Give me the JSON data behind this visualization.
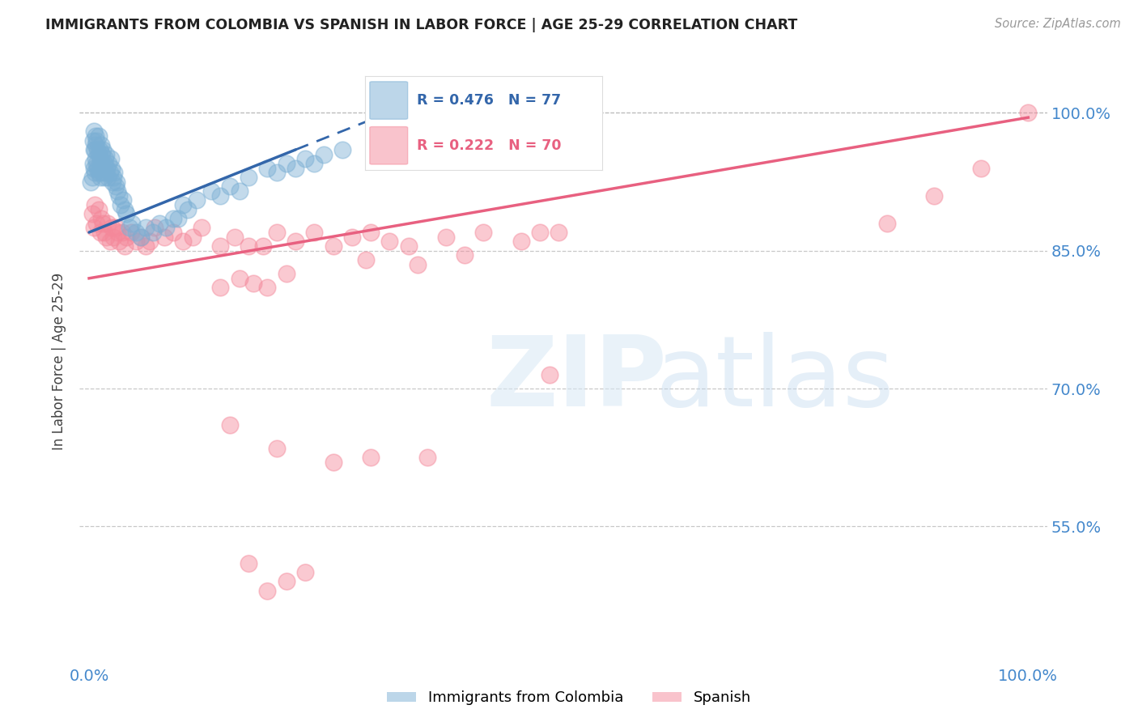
{
  "title": "IMMIGRANTS FROM COLOMBIA VS SPANISH IN LABOR FORCE | AGE 25-29 CORRELATION CHART",
  "source": "Source: ZipAtlas.com",
  "ylabel": "In Labor Force | Age 25-29",
  "xlim": [
    -0.01,
    1.02
  ],
  "ylim": [
    0.4,
    1.06
  ],
  "yticks": [
    0.55,
    0.7,
    0.85,
    1.0
  ],
  "ytick_labels": [
    "55.0%",
    "70.0%",
    "85.0%",
    "100.0%"
  ],
  "xtick_left_label": "0.0%",
  "xtick_right_label": "100.0%",
  "blue_R": 0.476,
  "blue_N": 77,
  "pink_R": 0.222,
  "pink_N": 70,
  "blue_color": "#7BAFD4",
  "pink_color": "#F4889A",
  "blue_line_color": "#3366AA",
  "pink_line_color": "#E86080",
  "background_color": "#FFFFFF",
  "grid_color": "#BBBBBB",
  "title_color": "#222222",
  "tick_color": "#4488CC",
  "legend_label_blue": "Immigrants from Colombia",
  "legend_label_pink": "Spanish",
  "blue_points_x": [
    0.002,
    0.003,
    0.004,
    0.004,
    0.005,
    0.005,
    0.005,
    0.006,
    0.006,
    0.007,
    0.007,
    0.007,
    0.008,
    0.008,
    0.009,
    0.009,
    0.01,
    0.01,
    0.01,
    0.011,
    0.011,
    0.012,
    0.012,
    0.013,
    0.013,
    0.014,
    0.014,
    0.015,
    0.015,
    0.016,
    0.016,
    0.017,
    0.018,
    0.018,
    0.019,
    0.02,
    0.021,
    0.022,
    0.023,
    0.024,
    0.025,
    0.026,
    0.027,
    0.028,
    0.029,
    0.03,
    0.032,
    0.034,
    0.036,
    0.038,
    0.04,
    0.043,
    0.046,
    0.05,
    0.055,
    0.06,
    0.068,
    0.075,
    0.082,
    0.09,
    0.1,
    0.115,
    0.13,
    0.15,
    0.17,
    0.19,
    0.21,
    0.23,
    0.25,
    0.27,
    0.095,
    0.105,
    0.14,
    0.16,
    0.2,
    0.22,
    0.24
  ],
  "blue_points_y": [
    0.925,
    0.93,
    0.945,
    0.97,
    0.94,
    0.96,
    0.98,
    0.935,
    0.96,
    0.95,
    0.965,
    0.975,
    0.945,
    0.97,
    0.94,
    0.96,
    0.935,
    0.955,
    0.975,
    0.94,
    0.96,
    0.93,
    0.95,
    0.945,
    0.965,
    0.935,
    0.955,
    0.94,
    0.96,
    0.93,
    0.945,
    0.95,
    0.935,
    0.955,
    0.94,
    0.93,
    0.945,
    0.935,
    0.95,
    0.94,
    0.925,
    0.93,
    0.935,
    0.92,
    0.925,
    0.915,
    0.91,
    0.9,
    0.905,
    0.895,
    0.89,
    0.875,
    0.88,
    0.87,
    0.865,
    0.875,
    0.87,
    0.88,
    0.875,
    0.885,
    0.9,
    0.905,
    0.915,
    0.92,
    0.93,
    0.94,
    0.945,
    0.95,
    0.955,
    0.96,
    0.885,
    0.895,
    0.91,
    0.915,
    0.935,
    0.94,
    0.945
  ],
  "pink_points_x": [
    0.003,
    0.005,
    0.006,
    0.008,
    0.01,
    0.012,
    0.013,
    0.015,
    0.016,
    0.018,
    0.02,
    0.022,
    0.024,
    0.026,
    0.028,
    0.03,
    0.032,
    0.035,
    0.038,
    0.04,
    0.045,
    0.05,
    0.055,
    0.06,
    0.065,
    0.07,
    0.08,
    0.09,
    0.1,
    0.11,
    0.12,
    0.14,
    0.155,
    0.17,
    0.185,
    0.2,
    0.22,
    0.24,
    0.26,
    0.28,
    0.3,
    0.32,
    0.34,
    0.38,
    0.42,
    0.46,
    0.5,
    0.14,
    0.16,
    0.175,
    0.19,
    0.21,
    0.295,
    0.35,
    0.4,
    0.48,
    0.85,
    0.9,
    0.95,
    1.0,
    0.15,
    0.2,
    0.26,
    0.3,
    0.36,
    0.49,
    0.17,
    0.19,
    0.21,
    0.23
  ],
  "pink_points_y": [
    0.89,
    0.875,
    0.9,
    0.88,
    0.895,
    0.87,
    0.885,
    0.88,
    0.87,
    0.865,
    0.88,
    0.86,
    0.875,
    0.865,
    0.875,
    0.87,
    0.86,
    0.87,
    0.855,
    0.865,
    0.87,
    0.86,
    0.865,
    0.855,
    0.86,
    0.875,
    0.865,
    0.87,
    0.86,
    0.865,
    0.875,
    0.855,
    0.865,
    0.855,
    0.855,
    0.87,
    0.86,
    0.87,
    0.855,
    0.865,
    0.87,
    0.86,
    0.855,
    0.865,
    0.87,
    0.86,
    0.87,
    0.81,
    0.82,
    0.815,
    0.81,
    0.825,
    0.84,
    0.835,
    0.845,
    0.87,
    0.88,
    0.91,
    0.94,
    1.0,
    0.66,
    0.635,
    0.62,
    0.625,
    0.625,
    0.715,
    0.51,
    0.48,
    0.49,
    0.5
  ],
  "blue_trend_x0": 0.0,
  "blue_trend_y0": 0.87,
  "blue_trend_x1": 0.22,
  "blue_trend_y1": 0.96,
  "blue_trend_dashed_x0": 0.22,
  "blue_trend_dashed_y0": 0.96,
  "blue_trend_dashed_x1": 0.38,
  "blue_trend_dashed_y1": 1.025,
  "pink_trend_x0": 0.0,
  "pink_trend_y0": 0.82,
  "pink_trend_x1": 1.0,
  "pink_trend_y1": 0.995
}
